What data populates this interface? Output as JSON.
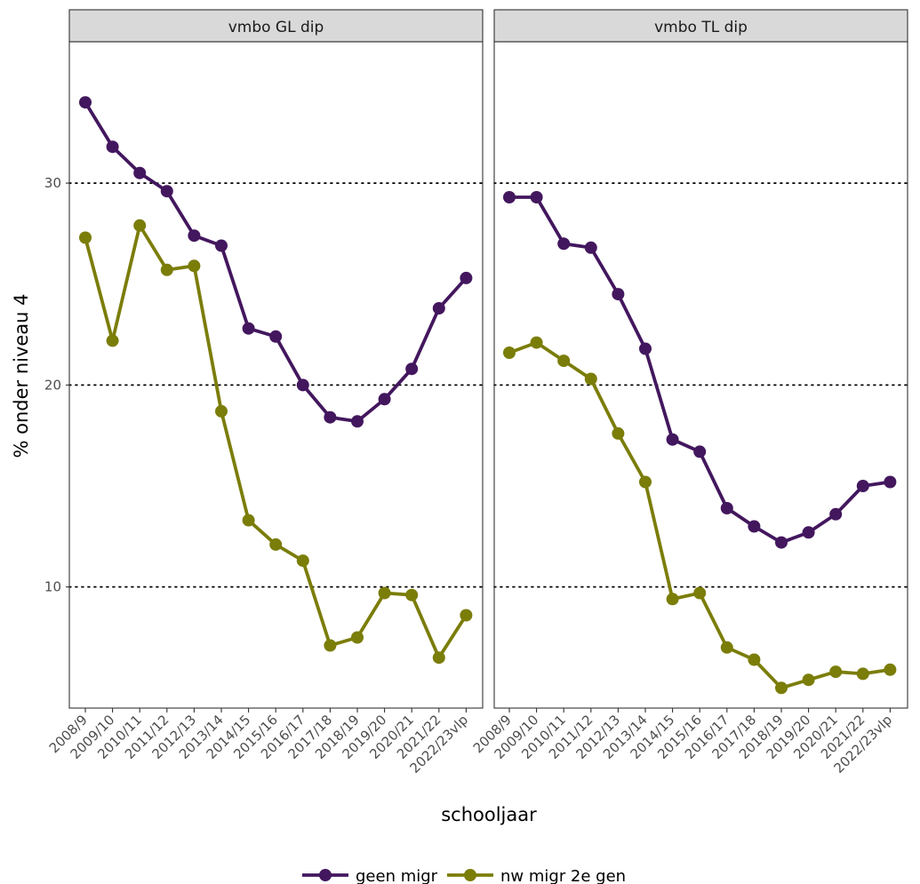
{
  "chart_data": {
    "type": "line",
    "ylabel": "% onder niveau 4",
    "xlabel": "schooljaar",
    "ylim": [
      4,
      37
    ],
    "yticks": [
      10,
      20,
      30
    ],
    "grid": "dotted horizontal at major y ticks",
    "legend_position": "bottom",
    "categories": [
      "2008/9",
      "2009/10",
      "2010/11",
      "2011/12",
      "2012/13",
      "2013/14",
      "2014/15",
      "2015/16",
      "2016/17",
      "2017/18",
      "2018/19",
      "2019/20",
      "2020/21",
      "2021/22",
      "2022/23vlp"
    ],
    "series_styles": [
      {
        "name": "geen migr",
        "color": "#43175e"
      },
      {
        "name": "nw migr 2e gen",
        "color": "#7b7d09"
      }
    ],
    "panels": [
      {
        "title": "vmbo GL dip",
        "series": [
          {
            "name": "geen migr",
            "values": [
              34.0,
              31.8,
              30.5,
              29.6,
              27.4,
              26.9,
              22.8,
              22.4,
              20.0,
              18.4,
              18.2,
              19.3,
              20.8,
              23.8,
              25.3
            ]
          },
          {
            "name": "nw migr 2e gen",
            "values": [
              27.3,
              22.2,
              27.9,
              25.7,
              25.9,
              18.7,
              13.3,
              12.1,
              11.3,
              7.1,
              7.5,
              9.7,
              9.6,
              6.5,
              8.6
            ]
          }
        ]
      },
      {
        "title": "vmbo TL dip",
        "series": [
          {
            "name": "geen migr",
            "values": [
              29.3,
              29.3,
              27.0,
              26.8,
              24.5,
              21.8,
              17.3,
              16.7,
              13.9,
              13.0,
              12.2,
              12.7,
              13.6,
              15.0,
              15.2
            ]
          },
          {
            "name": "nw migr 2e gen",
            "values": [
              21.6,
              22.1,
              21.2,
              20.3,
              17.6,
              15.2,
              9.4,
              9.7,
              7.0,
              6.4,
              5.0,
              5.4,
              5.8,
              5.7,
              5.9
            ]
          }
        ]
      }
    ]
  }
}
